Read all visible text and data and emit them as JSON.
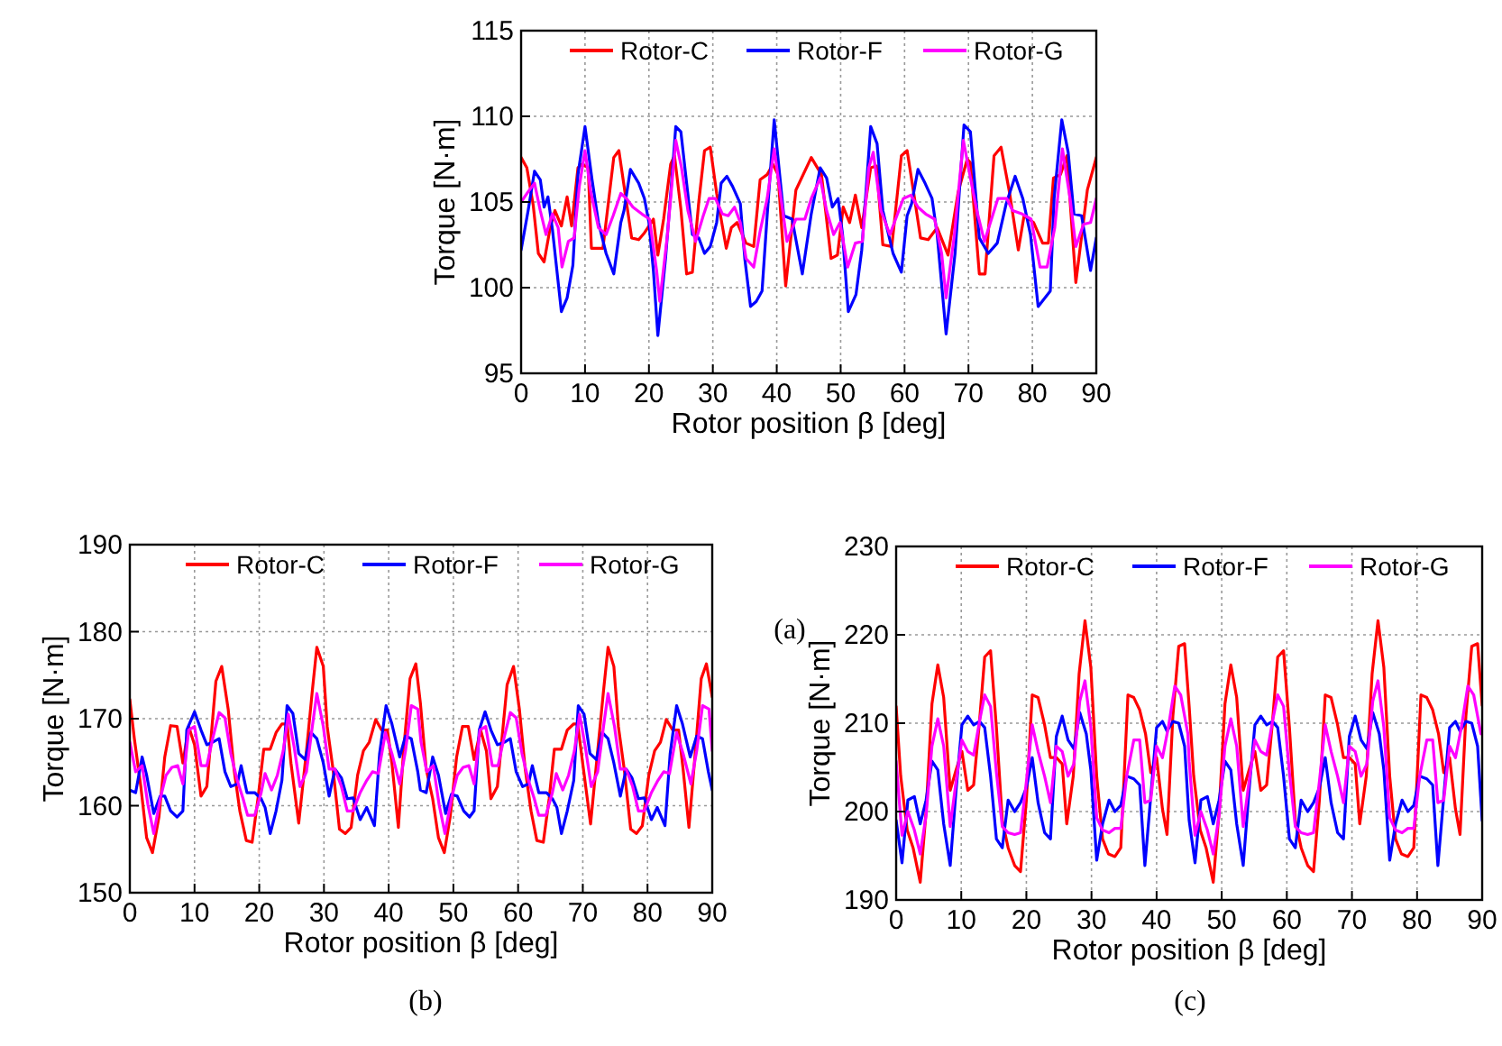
{
  "chart_data": [
    {
      "type": "line",
      "xlabel": "Rotor position β [deg]",
      "ylabel": "Torque [N·m]",
      "annotations": [
        "(a)"
      ],
      "xlim": [
        0,
        90
      ],
      "ylim": [
        95,
        115
      ],
      "xticks": [
        0,
        10,
        20,
        30,
        40,
        50,
        60,
        70,
        80,
        90
      ],
      "yticks": [
        95,
        100,
        105,
        110,
        115
      ],
      "grid": true,
      "legend": "top right",
      "series": [
        {
          "name": "Rotor-C",
          "color": "#ff0000",
          "x": [
            0,
            0.9,
            1.9,
            2.7,
            3.6,
            4.6,
            5.3,
            6.3,
            7.2,
            7.9,
            8.9,
            9.5,
            10.5,
            11,
            12.8,
            14.5,
            15.3,
            17.3,
            18.4,
            19.3,
            20.7,
            21.4,
            22.3,
            23.4,
            24,
            25,
            25.9,
            26.8,
            27.8,
            28.7,
            29.6,
            30.6,
            32.1,
            32.9,
            33.8,
            35.2,
            36.4,
            37.4,
            38.5,
            39.4,
            40.2,
            41.4,
            43,
            45.4,
            47,
            48.5,
            49.5,
            50.4,
            51.4,
            52.3,
            53.3,
            54.7,
            55.6,
            56.6,
            58,
            59.5,
            60.4,
            61.4,
            62.5,
            63.7,
            65.1,
            66.8,
            68.4,
            69.8,
            70.3,
            71.7,
            72.6,
            74,
            75.1,
            76.4,
            77.8,
            78.7,
            80.2,
            81.6,
            82.5,
            83.3,
            84.4,
            85.4,
            86.8,
            88.6,
            90
          ],
          "values": [
            107.6,
            107,
            104.8,
            102,
            101.5,
            103.6,
            104.5,
            103.6,
            105.3,
            103.6,
            107,
            107.2,
            107,
            102.3,
            102.3,
            107.6,
            108,
            102.9,
            102.8,
            103.2,
            104,
            101.9,
            104,
            107.2,
            107.7,
            104.6,
            100.8,
            100.9,
            105,
            108,
            108.2,
            105.5,
            102.3,
            103.5,
            103.8,
            102.6,
            102.4,
            106.3,
            106.6,
            107.2,
            106.6,
            100.1,
            105.7,
            107.6,
            106.6,
            101.7,
            101.9,
            104.7,
            103.8,
            105.4,
            103.5,
            107,
            107.1,
            102.5,
            102.4,
            107.7,
            108,
            105.6,
            102.9,
            102.8,
            103.5,
            101.9,
            105.6,
            107.5,
            107.3,
            100.8,
            100.8,
            107.7,
            108.2,
            105.6,
            102.2,
            104.2,
            103.8,
            102.6,
            102.6,
            106.4,
            106.6,
            107.7,
            100.3,
            105.7,
            107.6
          ]
        },
        {
          "name": "Rotor-F",
          "color": "#0000ff",
          "x": [
            0,
            1.1,
            2.1,
            3,
            3.6,
            4.2,
            4.9,
            6.3,
            7.2,
            8.1,
            8.9,
            10,
            11.1,
            12.1,
            13.3,
            14.5,
            15.6,
            16.1,
            17.1,
            18.4,
            19.3,
            20,
            20.7,
            21.4,
            22.6,
            23.6,
            24.2,
            25,
            25.9,
            26.8,
            27.8,
            28.7,
            29.6,
            30.6,
            31.3,
            32.2,
            33.1,
            34.3,
            35,
            35.9,
            36.8,
            37.7,
            38.5,
            39.6,
            41.1,
            42.4,
            44,
            45.4,
            46.8,
            47.8,
            48.7,
            49.6,
            50.3,
            51.2,
            52.4,
            53.3,
            54.7,
            55.7,
            56.6,
            58.2,
            59.5,
            60.4,
            61.1,
            62.1,
            63.2,
            64.3,
            65.1,
            66.5,
            67.9,
            69.3,
            70.3,
            71.7,
            73.1,
            74.5,
            75.9,
            77.3,
            78.5,
            79.7,
            80.9,
            82.8,
            83.4,
            84.6,
            85.6,
            86.5,
            87.7,
            89.1,
            90
          ],
          "values": [
            102.2,
            104.5,
            106.8,
            106.3,
            104.7,
            105.3,
            103.4,
            98.6,
            99.4,
            101.3,
            106.6,
            109.4,
            106.3,
            103.8,
            102,
            100.8,
            103.8,
            104.5,
            106.9,
            106.1,
            105.2,
            103.8,
            101,
            97.2,
            101.7,
            106.4,
            109.4,
            109.1,
            106.1,
            103.1,
            102.9,
            102,
            102.4,
            103.8,
            106.1,
            106.5,
            105.9,
            104.9,
            101.7,
            98.9,
            99.2,
            99.8,
            104.2,
            109.8,
            104.2,
            104,
            100.8,
            104.3,
            107,
            106.4,
            104.7,
            105.2,
            103.1,
            98.6,
            99.6,
            102.2,
            109.4,
            108.4,
            104.5,
            102,
            100.9,
            104.2,
            104.9,
            106.9,
            106.1,
            105.2,
            103.1,
            97.3,
            102,
            109.5,
            109.1,
            102.9,
            102,
            102.6,
            104.9,
            106.5,
            105.2,
            103.1,
            98.9,
            99.8,
            105.2,
            109.8,
            107.9,
            104.3,
            104.2,
            101,
            102.9
          ]
        },
        {
          "name": "Rotor-G",
          "color": "#ff00ff",
          "x": [
            0,
            1.1,
            2.1,
            3,
            3.9,
            4.9,
            5.8,
            6.4,
            7.4,
            8.3,
            9.1,
            10,
            10.9,
            12.1,
            13.3,
            14.4,
            15.6,
            16.5,
            17.5,
            18.9,
            20.1,
            21.2,
            21.7,
            22.9,
            24.2,
            25.1,
            26.1,
            27.3,
            28.5,
            29.4,
            30.4,
            31.5,
            32.4,
            33.4,
            34.3,
            35.2,
            36.4,
            37.4,
            38.5,
            39.6,
            41.6,
            43,
            44.4,
            45.4,
            46.8,
            47.8,
            48.9,
            49.9,
            51.1,
            52.3,
            53.4,
            54.4,
            55.1,
            56.3,
            57.7,
            58.6,
            59.8,
            61,
            62.1,
            63.3,
            64.7,
            65.8,
            66.5,
            67.8,
            69.2,
            70,
            71.3,
            72.5,
            73.6,
            74.6,
            76,
            76.9,
            78.4,
            79.8,
            81.2,
            82.3,
            83.5,
            84.7,
            85.9,
            86.8,
            88,
            89.1,
            90
          ],
          "values": [
            105,
            105.6,
            106.1,
            104.5,
            103.1,
            104.3,
            103.5,
            101.2,
            102.7,
            102.9,
            105.9,
            108,
            105.6,
            103.5,
            103.1,
            104.2,
            105.5,
            105.2,
            104.7,
            104.3,
            104,
            101,
            99.2,
            103.1,
            108.6,
            107,
            104.5,
            102.7,
            104.2,
            105.2,
            105.2,
            104.3,
            104.2,
            104.7,
            103.8,
            101.7,
            101.2,
            103.3,
            105.2,
            108.1,
            102.7,
            104,
            104,
            105.2,
            106.4,
            104.5,
            103.1,
            103.8,
            101.2,
            102.6,
            102.7,
            107,
            107.9,
            104.5,
            103.1,
            104,
            105.2,
            105.4,
            104.7,
            104.3,
            104,
            102,
            99.4,
            103.1,
            108.6,
            107,
            104.5,
            102.7,
            104,
            105.2,
            105.2,
            104.5,
            104.3,
            104,
            101.2,
            101.2,
            103.5,
            108.1,
            105.2,
            102.4,
            103.7,
            103.8,
            105.2
          ]
        }
      ]
    },
    {
      "type": "line",
      "xlabel": "Rotor position β [deg]",
      "ylabel": "Torque [N·m]",
      "annotations": [
        "(b)"
      ],
      "xlim": [
        0,
        90
      ],
      "ylim": [
        150,
        190
      ],
      "xticks": [
        0,
        10,
        20,
        30,
        40,
        50,
        60,
        70,
        80,
        90
      ],
      "yticks": [
        150,
        160,
        170,
        180,
        190
      ],
      "grid": true,
      "legend": "top right",
      "series": [
        {
          "name": "Rotor-C",
          "color": "#ff0000",
          "x": [
            0,
            0.7,
            1.7,
            2.6,
            3.5,
            4.5,
            5.4,
            6.3,
            7.3,
            8.2,
            9.1,
            10,
            11,
            11.9,
            13.3,
            14.2,
            15.2,
            16.1,
            17,
            18,
            18.9,
            19.8,
            20.7,
            21.7,
            22.6,
            23.5,
            24.3,
            24.9,
            26.1,
            27.3,
            28.2,
            28.9,
            29.9,
            30.5,
            31.4,
            32.4,
            33.3,
            34.2,
            35.2,
            36.1,
            37,
            38,
            38.9,
            39.8,
            40.5,
            41.5,
            42.3,
            43.3,
            44.2,
            44.9,
            45.8,
            46.8,
            47.7,
            48.6,
            49.5,
            50.5,
            51.4,
            52.3,
            53.2,
            54.2,
            55.1,
            55.8,
            56.8,
            58.3,
            59.3,
            60.2,
            61.1,
            62,
            62.9,
            63.9,
            64.8,
            65.6,
            66.7,
            67.6,
            68.6,
            69.2,
            70.1,
            71.2,
            72.3,
            73.2,
            73.9,
            74.8,
            75.5,
            76.4,
            77.4,
            78.3,
            79.2,
            80.2,
            81.1,
            82,
            82.9,
            83.9,
            84.8,
            85.5,
            86.4,
            87.4,
            88.3,
            89.1,
            90
          ],
          "values": [
            172.2,
            167.7,
            162.2,
            156.3,
            154.6,
            158.7,
            165.6,
            169.2,
            169.1,
            164.9,
            169.1,
            167,
            161.1,
            162.2,
            174.3,
            176,
            171.1,
            164.2,
            159.4,
            156,
            155.8,
            160.8,
            166.5,
            166.5,
            168.4,
            169.4,
            169.4,
            164.9,
            158,
            166.3,
            173.2,
            178.2,
            176,
            169.1,
            164.2,
            157.3,
            156.8,
            157.5,
            163.5,
            166.3,
            167.3,
            169.9,
            168.7,
            168.7,
            164.9,
            157.5,
            166.3,
            174.6,
            176.3,
            171.8,
            164.2,
            160.8,
            156.3,
            154.6,
            158.7,
            165.6,
            169.1,
            169.1,
            165.3,
            168.7,
            166.3,
            160.8,
            162.2,
            173.9,
            176,
            171.1,
            164.2,
            159.4,
            156,
            155.8,
            160.8,
            166.5,
            166.5,
            168.7,
            169.4,
            169.4,
            164.2,
            157.9,
            166.3,
            173.2,
            178.2,
            176,
            169.1,
            164.2,
            157.3,
            156.8,
            157.7,
            163.5,
            166.3,
            167.3,
            169.9,
            168.7,
            168.7,
            164.2,
            157.5,
            166.3,
            174.6,
            176.3,
            172.5
          ]
        },
        {
          "name": "Rotor-F",
          "color": "#0000ff",
          "x": [
            0,
            0.9,
            1.9,
            2.6,
            3.7,
            4.7,
            5.4,
            6.3,
            7.3,
            8.2,
            8.8,
            10,
            11,
            11.9,
            12.8,
            13.8,
            14.7,
            15.6,
            16.6,
            17.2,
            18.1,
            19.3,
            20.3,
            20.9,
            21.7,
            22.6,
            23.5,
            24.3,
            25.2,
            26.1,
            27.1,
            28,
            28.9,
            29.9,
            30.8,
            31.7,
            32.7,
            33.6,
            34.5,
            35.6,
            36.6,
            37.8,
            38.6,
            39.6,
            40.5,
            41.7,
            42.6,
            43.5,
            44.5,
            44.9,
            45.8,
            46.8,
            47.7,
            48.8,
            49.7,
            50.6,
            51.6,
            52.5,
            53.2,
            54,
            54.9,
            55.8,
            56.8,
            57.9,
            58.8,
            59.7,
            60.7,
            61.6,
            62.2,
            63.2,
            64.4,
            65.3,
            66,
            66.7,
            67.6,
            68.6,
            69.3,
            70.2,
            71.1,
            72.1,
            73,
            73.9,
            74.8,
            75.8,
            76.7,
            77.6,
            78.6,
            79.5,
            80.6,
            81.5,
            82.7,
            83.5,
            84.5,
            85.4,
            86.6,
            87.6,
            88.5,
            89.4,
            90
          ],
          "values": [
            161.8,
            161.5,
            165.6,
            163.5,
            159.1,
            161.1,
            161.1,
            159.4,
            158.7,
            159.4,
            168.7,
            170.8,
            168.7,
            167,
            167.3,
            167.7,
            163.9,
            162.2,
            162.5,
            164.6,
            161.5,
            161.5,
            160.8,
            159.8,
            156.8,
            159.4,
            162.9,
            171.5,
            170.6,
            166,
            165.3,
            168.4,
            167.7,
            164.9,
            161.1,
            164.2,
            163.2,
            160.8,
            160.9,
            158.4,
            159.8,
            157.7,
            166,
            171.5,
            169.4,
            165.6,
            168,
            167.7,
            163.9,
            161.8,
            161.5,
            165.6,
            163.5,
            159.1,
            161.3,
            161.1,
            159.4,
            158.7,
            159.4,
            168.7,
            170.8,
            168.7,
            167,
            167.3,
            167.7,
            163.9,
            162.2,
            162.5,
            164.6,
            161.5,
            161.5,
            160.8,
            159.8,
            156.8,
            159.4,
            162.9,
            171.5,
            170.5,
            166,
            165.3,
            168.4,
            167.7,
            164.9,
            161.1,
            164.2,
            163.2,
            160.8,
            160.9,
            158.4,
            159.8,
            157.7,
            166,
            171.5,
            169.4,
            165.6,
            168,
            167.7,
            163.9,
            161.8
          ]
        },
        {
          "name": "Rotor-G",
          "color": "#ff00ff",
          "x": [
            0,
            0.9,
            1.9,
            2.8,
            3.7,
            4.7,
            5.6,
            6.5,
            7.4,
            8.2,
            9.1,
            10,
            11,
            11.9,
            12.8,
            13.8,
            14.7,
            15.6,
            16.6,
            17.5,
            18.2,
            19.3,
            20.3,
            20.9,
            21.9,
            22.8,
            23.7,
            24.5,
            25.4,
            26.3,
            27.3,
            28.2,
            28.9,
            29.9,
            30.8,
            31.7,
            32.7,
            33.6,
            34.5,
            35.6,
            36.6,
            37.5,
            38.4,
            39.5,
            40.5,
            41.7,
            42.6,
            43.5,
            44.5,
            45,
            45.9,
            46.9,
            47.8,
            48.7,
            49.7,
            50.6,
            51.5,
            52.4,
            53.2,
            54.1,
            55,
            56,
            56.9,
            57.8,
            58.8,
            59.7,
            60.6,
            61.6,
            62.5,
            63.2,
            64.3,
            65.3,
            65.9,
            66.9,
            67.8,
            68.7,
            69.5,
            70.4,
            71.3,
            72.3,
            73.2,
            73.9,
            74.9,
            75.8,
            76.7,
            77.7,
            78.6,
            79.5,
            80.6,
            81.6,
            82.5,
            83.4,
            84.5,
            85.5,
            86.7,
            87.6,
            88.5,
            89.5,
            90
          ],
          "values": [
            167.3,
            163.9,
            164.6,
            160.1,
            156.8,
            160.8,
            163.5,
            164.4,
            164.6,
            162.5,
            168.7,
            169.1,
            164.6,
            164.6,
            167.7,
            170.7,
            170.1,
            166,
            162.9,
            160.8,
            158.9,
            158.9,
            161.5,
            163.7,
            161.8,
            163.5,
            166.3,
            170.5,
            166.7,
            162.2,
            163.9,
            169.1,
            172.9,
            169.1,
            164.2,
            164.2,
            162.2,
            159.4,
            159.4,
            161.5,
            162.9,
            163.9,
            163.7,
            168.4,
            166,
            162.5,
            166.3,
            171.5,
            171.1,
            167.3,
            163.9,
            164.6,
            160.1,
            156.8,
            160.8,
            163.5,
            164.4,
            164.6,
            162.5,
            168.7,
            169.1,
            164.6,
            164.6,
            167.7,
            170.7,
            170.1,
            166,
            162.9,
            160.8,
            158.9,
            158.9,
            161.5,
            163.7,
            161.8,
            163.5,
            166.3,
            170.5,
            166.7,
            162.2,
            163.9,
            169.1,
            172.9,
            169.1,
            164.2,
            164.2,
            162.2,
            159.4,
            159.4,
            161.5,
            162.9,
            163.9,
            163.7,
            168.4,
            166,
            162.5,
            166.3,
            171.5,
            171.1,
            166.3
          ]
        }
      ]
    },
    {
      "type": "line",
      "xlabel": "Rotor position β [deg]",
      "ylabel": "Torque [N·m]",
      "annotations": [
        "(c)"
      ],
      "xlim": [
        0,
        90
      ],
      "ylim": [
        190,
        230
      ],
      "xticks": [
        0,
        10,
        20,
        30,
        40,
        50,
        60,
        70,
        80,
        90
      ],
      "yticks": [
        190,
        200,
        210,
        220,
        230
      ],
      "grid": true,
      "legend": "top right",
      "series": [
        {
          "name": "Rotor-C",
          "color": "#ff0000",
          "x": [
            0,
            0.7,
            1.7,
            2.6,
            3.7,
            4.6,
            5.5,
            6.4,
            7.3,
            8.3,
            9.2,
            10.1,
            11,
            11.9,
            12.8,
            13.6,
            14.5,
            15.4,
            16.3,
            17.2,
            18.2,
            19.1,
            20,
            20.9,
            21.8,
            22.8,
            23.7,
            24.6,
            25.5,
            26.2,
            27.2,
            28.1,
            29,
            29.9,
            30.8,
            31.7,
            32.6,
            33.6,
            34.5,
            35.6,
            36.5,
            37.4,
            38.3,
            39.1,
            40,
            40.9,
            41.6,
            42.5,
            43.4,
            44.3,
            45,
            45.7,
            46.7,
            47.6,
            48.7,
            49.6,
            50.5,
            51.4,
            52.3,
            53.3,
            54.2,
            55.1,
            56,
            56.9,
            57.8,
            58.6,
            59.5,
            60.4,
            61.3,
            62.2,
            63.2,
            64.1,
            65,
            65.9,
            66.8,
            67.8,
            68.7,
            69.6,
            70.5,
            71.2,
            72.2,
            73.1,
            74,
            74.9,
            75.8,
            76.7,
            77.6,
            78.6,
            79.5,
            80.6,
            81.5,
            82.4,
            83.3,
            84.1,
            85,
            85.9,
            86.6,
            87.5,
            88.4,
            89.3,
            90
          ],
          "values": [
            211.9,
            204,
            197.9,
            195.9,
            192,
            200,
            212.2,
            216.6,
            212.9,
            202.4,
            204.7,
            206.8,
            202.4,
            203,
            210.2,
            217.5,
            218.2,
            209.5,
            199,
            195.9,
            193.9,
            193.2,
            201.3,
            213.2,
            212.9,
            209.8,
            206.1,
            206.1,
            205.4,
            198.6,
            204,
            215.6,
            221.6,
            216.3,
            204,
            196.9,
            195.2,
            194.9,
            195.9,
            213.2,
            212.9,
            211.5,
            208.8,
            204.4,
            206.1,
            200.3,
            197.4,
            210.8,
            218.7,
            219,
            211.9,
            204,
            197.9,
            195.9,
            192,
            200,
            212.2,
            216.6,
            212.9,
            202.4,
            204.7,
            206.8,
            202.4,
            203,
            210.2,
            217.5,
            218.2,
            209.5,
            199,
            195.9,
            193.9,
            193.2,
            201.3,
            213.2,
            212.9,
            209.8,
            206.1,
            206.1,
            205.4,
            198.6,
            204,
            215.6,
            221.6,
            216.3,
            204,
            196.9,
            195.2,
            194.9,
            195.9,
            213.2,
            212.9,
            211.5,
            208.8,
            204.4,
            206.1,
            200.3,
            197.4,
            210.8,
            218.7,
            219,
            212
          ]
        },
        {
          "name": "Rotor-F",
          "color": "#0000ff",
          "x": [
            0,
            0.9,
            1.8,
            2.8,
            3.7,
            4.6,
            5.5,
            6.4,
            7.3,
            8.3,
            9.2,
            10.1,
            11,
            11.9,
            12.8,
            13.6,
            14.5,
            15.4,
            16.3,
            17.2,
            18.2,
            19.1,
            20,
            20.9,
            21.8,
            22.8,
            23.7,
            24.6,
            25.5,
            26.4,
            27.3,
            28.2,
            29.2,
            29.9,
            30.8,
            31.7,
            32.7,
            33.6,
            34.5,
            35.4,
            36.5,
            37.4,
            38.2,
            39.1,
            40,
            40.9,
            41.6,
            42.5,
            43.4,
            44.3,
            45,
            45.9,
            46.8,
            47.8,
            48.7,
            49.6,
            50.5,
            51.4,
            52.3,
            53.3,
            54.2,
            55.1,
            56,
            56.9,
            57.8,
            58.6,
            59.5,
            60.4,
            61.3,
            62.2,
            63.2,
            64.1,
            65,
            65.9,
            66.8,
            67.8,
            68.7,
            69.6,
            70.5,
            71.4,
            72.3,
            73.2,
            74.2,
            74.9,
            75.8,
            76.7,
            77.7,
            78.6,
            79.5,
            80.4,
            81.5,
            82.4,
            83.2,
            84.1,
            85,
            85.9,
            86.6,
            87.5,
            88.4,
            89.3,
            90
          ],
          "values": [
            199,
            194.2,
            201.3,
            201.7,
            198.6,
            201.3,
            205.7,
            204.7,
            198.6,
            193.9,
            202.4,
            209.8,
            210.8,
            209.8,
            210.2,
            209.5,
            204,
            196.9,
            195.9,
            201.3,
            200,
            201,
            202.7,
            206.1,
            201,
            197.6,
            196.9,
            208.5,
            210.8,
            208.1,
            207.1,
            211.2,
            208.8,
            204.7,
            194.5,
            198.6,
            201.3,
            200,
            200.7,
            204,
            203.7,
            203,
            193.9,
            201.7,
            209.5,
            210.2,
            209.1,
            210.2,
            210,
            207.4,
            199,
            194.2,
            201.3,
            201.7,
            198.6,
            201.3,
            205.7,
            204.7,
            198.6,
            193.9,
            202.4,
            209.8,
            210.8,
            209.8,
            210.2,
            209.5,
            204,
            196.9,
            195.9,
            201.3,
            200,
            201,
            202.7,
            206.1,
            201,
            197.6,
            196.9,
            208.5,
            210.8,
            208.1,
            207.1,
            211.2,
            208.8,
            204.7,
            194.5,
            198.6,
            201.3,
            200,
            200.7,
            204,
            203.7,
            203,
            193.9,
            201.7,
            209.5,
            210.2,
            209.1,
            210.2,
            210,
            207.4,
            199
          ]
        },
        {
          "name": "Rotor-G",
          "color": "#ff00ff",
          "x": [
            0,
            0.9,
            1.8,
            2.8,
            3.7,
            4.6,
            5.5,
            6.4,
            7.3,
            8.3,
            9.2,
            10.1,
            11,
            11.9,
            12.8,
            13.6,
            14.5,
            15.4,
            16.3,
            17.2,
            18.2,
            19.1,
            20,
            20.9,
            21.8,
            22.8,
            23.7,
            24.6,
            25.5,
            26.4,
            27.3,
            28.2,
            29,
            29.9,
            30.8,
            31.7,
            32.7,
            33.6,
            34.5,
            35.4,
            36.5,
            37.4,
            38.2,
            39.1,
            40,
            40.9,
            41.8,
            42.8,
            43.7,
            44.8,
            45,
            45.9,
            46.8,
            47.8,
            48.7,
            49.6,
            50.5,
            51.4,
            52.3,
            53.3,
            54.2,
            55.1,
            56,
            56.9,
            57.8,
            58.6,
            59.5,
            60.4,
            61.3,
            62.2,
            63.2,
            64.1,
            65,
            65.9,
            66.8,
            67.8,
            68.7,
            69.6,
            70.5,
            71.4,
            72.3,
            73.2,
            74,
            74.9,
            75.8,
            76.7,
            77.7,
            78.6,
            79.5,
            80.4,
            81.5,
            82.4,
            83.2,
            84.1,
            85,
            85.9,
            86.8,
            87.8,
            88.7,
            89.8
          ],
          "values": [
            205.7,
            197.3,
            200,
            197.9,
            195.2,
            199.6,
            207.4,
            210.5,
            207.4,
            198.3,
            203.4,
            208.1,
            206.8,
            206.4,
            210.2,
            213.2,
            211.9,
            204.4,
            198.3,
            197.6,
            197.4,
            197.6,
            203.4,
            209.8,
            206.8,
            204,
            201,
            207.4,
            206.8,
            204,
            205.4,
            212.5,
            214.8,
            209.5,
            199.3,
            197.9,
            197.6,
            198.1,
            198.1,
            204,
            208.1,
            208.1,
            201,
            201.3,
            207.4,
            206.1,
            209.5,
            214.2,
            213.2,
            208.8,
            205.7,
            197.3,
            200,
            197.9,
            195.2,
            199.6,
            207.4,
            210.5,
            207.4,
            198.3,
            203.4,
            208.1,
            206.8,
            206.4,
            210.2,
            213.2,
            211.9,
            204.4,
            198.3,
            197.6,
            197.4,
            197.6,
            203.4,
            209.8,
            206.8,
            204,
            201,
            207.4,
            206.8,
            204,
            205.4,
            212.5,
            214.8,
            209.5,
            199.3,
            197.9,
            197.6,
            198.1,
            198.1,
            204,
            208.1,
            208.1,
            201,
            201.3,
            207.4,
            206.1,
            209.5,
            214.2,
            213.2,
            208.8
          ]
        }
      ]
    }
  ]
}
